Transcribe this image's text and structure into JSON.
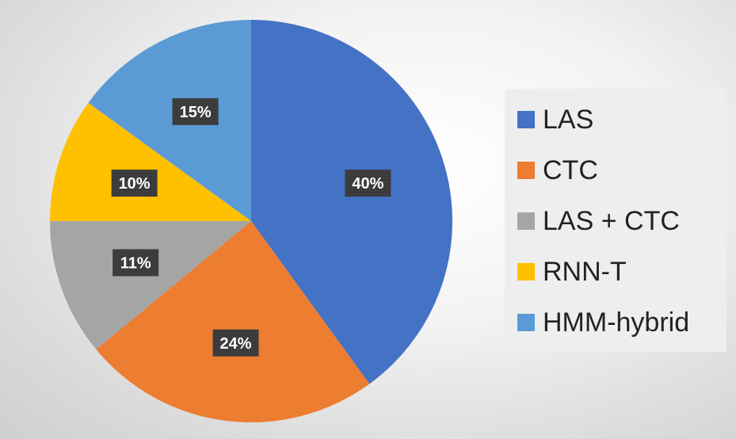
{
  "chart_data": {
    "type": "pie",
    "slices": [
      {
        "label": "LAS",
        "value": 40,
        "display": "40%",
        "color": "#4472C4"
      },
      {
        "label": "CTC",
        "value": 24,
        "display": "24%",
        "color": "#ED7D31"
      },
      {
        "label": "LAS + CTC",
        "value": 11,
        "display": "11%",
        "color": "#A5A5A5"
      },
      {
        "label": "RNN-T",
        "value": 10,
        "display": "10%",
        "color": "#FFC000"
      },
      {
        "label": "HMM-hybrid",
        "value": 15,
        "display": "15%",
        "color": "#5B9BD5"
      }
    ],
    "legend_position": "right",
    "start_angle_deg": 0,
    "direction": "clockwise"
  }
}
